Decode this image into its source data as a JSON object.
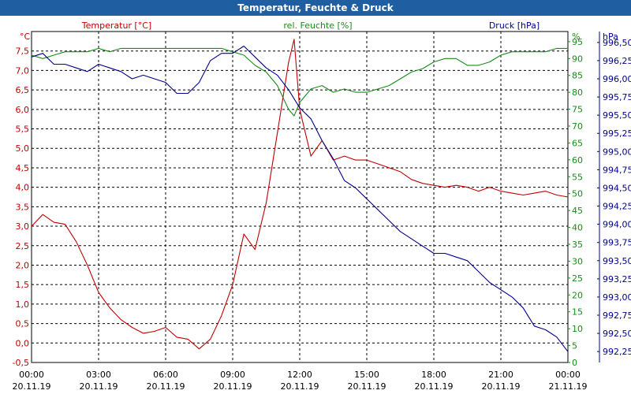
{
  "window": {
    "title": "Temperatur, Feuchte & Druck"
  },
  "chart_data": {
    "type": "line",
    "title": "Temperatur, Feuchte & Druck",
    "grid": true,
    "x_ticks": [
      {
        "time": "00:00",
        "date": "20.11.19"
      },
      {
        "time": "03:00",
        "date": "20.11.19"
      },
      {
        "time": "06:00",
        "date": "20.11.19"
      },
      {
        "time": "09:00",
        "date": "20.11.19"
      },
      {
        "time": "12:00",
        "date": "20.11.19"
      },
      {
        "time": "15:00",
        "date": "20.11.19"
      },
      {
        "time": "18:00",
        "date": "20.11.19"
      },
      {
        "time": "21:00",
        "date": "20.11.19"
      },
      {
        "time": "00:00",
        "date": "21.11.19"
      }
    ],
    "xlim_hours": [
      0,
      24
    ],
    "axes": {
      "temperature": {
        "label": "Temperatur [°C]",
        "unit": "°C",
        "color": "#c00000",
        "ylim": [
          -0.5,
          8.0
        ],
        "ticks": [
          "-0,5",
          "0,0",
          "0,5",
          "1,0",
          "1,5",
          "2,0",
          "2,5",
          "3,0",
          "3,5",
          "4,0",
          "4,5",
          "5,0",
          "5,5",
          "6,0",
          "6,5",
          "7,0",
          "7,5"
        ]
      },
      "humidity": {
        "label": "rel. Feuchte [%]",
        "unit": "%",
        "color": "#1a8a1a",
        "ylim": [
          0,
          98
        ],
        "ticks": [
          "0",
          "5",
          "10",
          "15",
          "20",
          "25",
          "30",
          "35",
          "40",
          "45",
          "50",
          "55",
          "60",
          "65",
          "70",
          "75",
          "80",
          "85",
          "90",
          "95"
        ]
      },
      "pressure": {
        "label": "Druck [hPa]",
        "unit": "hPa",
        "color": "#00008b",
        "ylim": [
          992.1,
          996.65
        ],
        "ticks": [
          "992,25",
          "992,50",
          "992,75",
          "993,00",
          "993,25",
          "993,50",
          "993,75",
          "994,00",
          "994,25",
          "994,50",
          "994,75",
          "995,00",
          "995,25",
          "995,50",
          "995,75",
          "996,00",
          "996,25",
          "996,50"
        ]
      }
    },
    "series": [
      {
        "name": "Temperatur [°C]",
        "axis": "temperature",
        "color": "#c00000",
        "x_hours": [
          0,
          0.5,
          1,
          1.5,
          2,
          2.5,
          3,
          3.5,
          4,
          4.5,
          5,
          5.5,
          6,
          6.5,
          7,
          7.5,
          8,
          8.5,
          9,
          9.5,
          10,
          10.5,
          11,
          11.5,
          11.75,
          12,
          12.5,
          13,
          13.5,
          14,
          14.5,
          15,
          15.5,
          16,
          16.5,
          17,
          17.5,
          18,
          18.5,
          19,
          19.5,
          20,
          20.5,
          21,
          21.5,
          22,
          22.5,
          23,
          23.5,
          24
        ],
        "values": [
          3.0,
          3.3,
          3.1,
          3.05,
          2.6,
          2.0,
          1.3,
          0.9,
          0.6,
          0.4,
          0.25,
          0.3,
          0.4,
          0.15,
          0.1,
          -0.15,
          0.1,
          0.7,
          1.5,
          2.8,
          2.4,
          3.6,
          5.4,
          7.2,
          7.8,
          6.0,
          4.8,
          5.2,
          4.7,
          4.8,
          4.7,
          4.7,
          4.6,
          4.5,
          4.4,
          4.2,
          4.1,
          4.05,
          4.0,
          4.05,
          4.0,
          3.9,
          4.0,
          3.9,
          3.85,
          3.8,
          3.85,
          3.9,
          3.8,
          3.75
        ]
      },
      {
        "name": "rel. Feuchte [%]",
        "axis": "humidity",
        "color": "#1a8a1a",
        "x_hours": [
          0,
          0.5,
          1,
          1.5,
          2,
          2.5,
          3,
          3.5,
          4,
          4.5,
          5,
          5.5,
          6,
          6.5,
          7,
          7.5,
          8,
          8.5,
          9,
          9.5,
          10,
          10.5,
          11,
          11.5,
          11.75,
          12,
          12.5,
          13,
          13.5,
          14,
          14.5,
          15,
          15.5,
          16,
          16.5,
          17,
          17.5,
          18,
          18.5,
          19,
          19.5,
          20,
          20.5,
          21,
          21.5,
          22,
          22.5,
          23,
          23.5,
          24
        ],
        "values": [
          91,
          90,
          91,
          92,
          92,
          92,
          93,
          92,
          93,
          93,
          93,
          93,
          93,
          93,
          93,
          93,
          93,
          93,
          92,
          91,
          88,
          86,
          82,
          75,
          73,
          77,
          81,
          82,
          80,
          81,
          80,
          80,
          81,
          82,
          84,
          86,
          87,
          89,
          90,
          90,
          88,
          88,
          89,
          91,
          92,
          92,
          92,
          92,
          93,
          93
        ]
      },
      {
        "name": "Druck [hPa]",
        "axis": "pressure",
        "color": "#00008b",
        "x_hours": [
          0,
          0.5,
          1,
          1.5,
          2,
          2.5,
          3,
          3.5,
          4,
          4.5,
          5,
          5.5,
          6,
          6.5,
          7,
          7.5,
          8,
          8.5,
          9,
          9.5,
          10,
          10.5,
          11,
          11.5,
          12,
          12.5,
          13,
          13.5,
          14,
          14.5,
          15,
          15.5,
          16,
          16.5,
          17,
          17.5,
          18,
          18.5,
          19,
          19.5,
          20,
          20.5,
          21,
          21.5,
          22,
          22.5,
          23,
          23.5,
          24
        ],
        "values": [
          996.3,
          996.35,
          996.2,
          996.2,
          996.15,
          996.1,
          996.2,
          996.15,
          996.1,
          996.0,
          996.05,
          996.0,
          995.95,
          995.8,
          995.8,
          995.95,
          996.25,
          996.35,
          996.35,
          996.45,
          996.3,
          996.15,
          996.05,
          995.85,
          995.6,
          995.45,
          995.15,
          994.9,
          994.6,
          994.5,
          994.35,
          994.2,
          994.05,
          993.9,
          993.8,
          993.7,
          993.6,
          993.6,
          993.55,
          993.5,
          993.35,
          993.2,
          993.1,
          993.0,
          992.85,
          992.6,
          992.55,
          992.45,
          992.25
        ]
      }
    ]
  }
}
